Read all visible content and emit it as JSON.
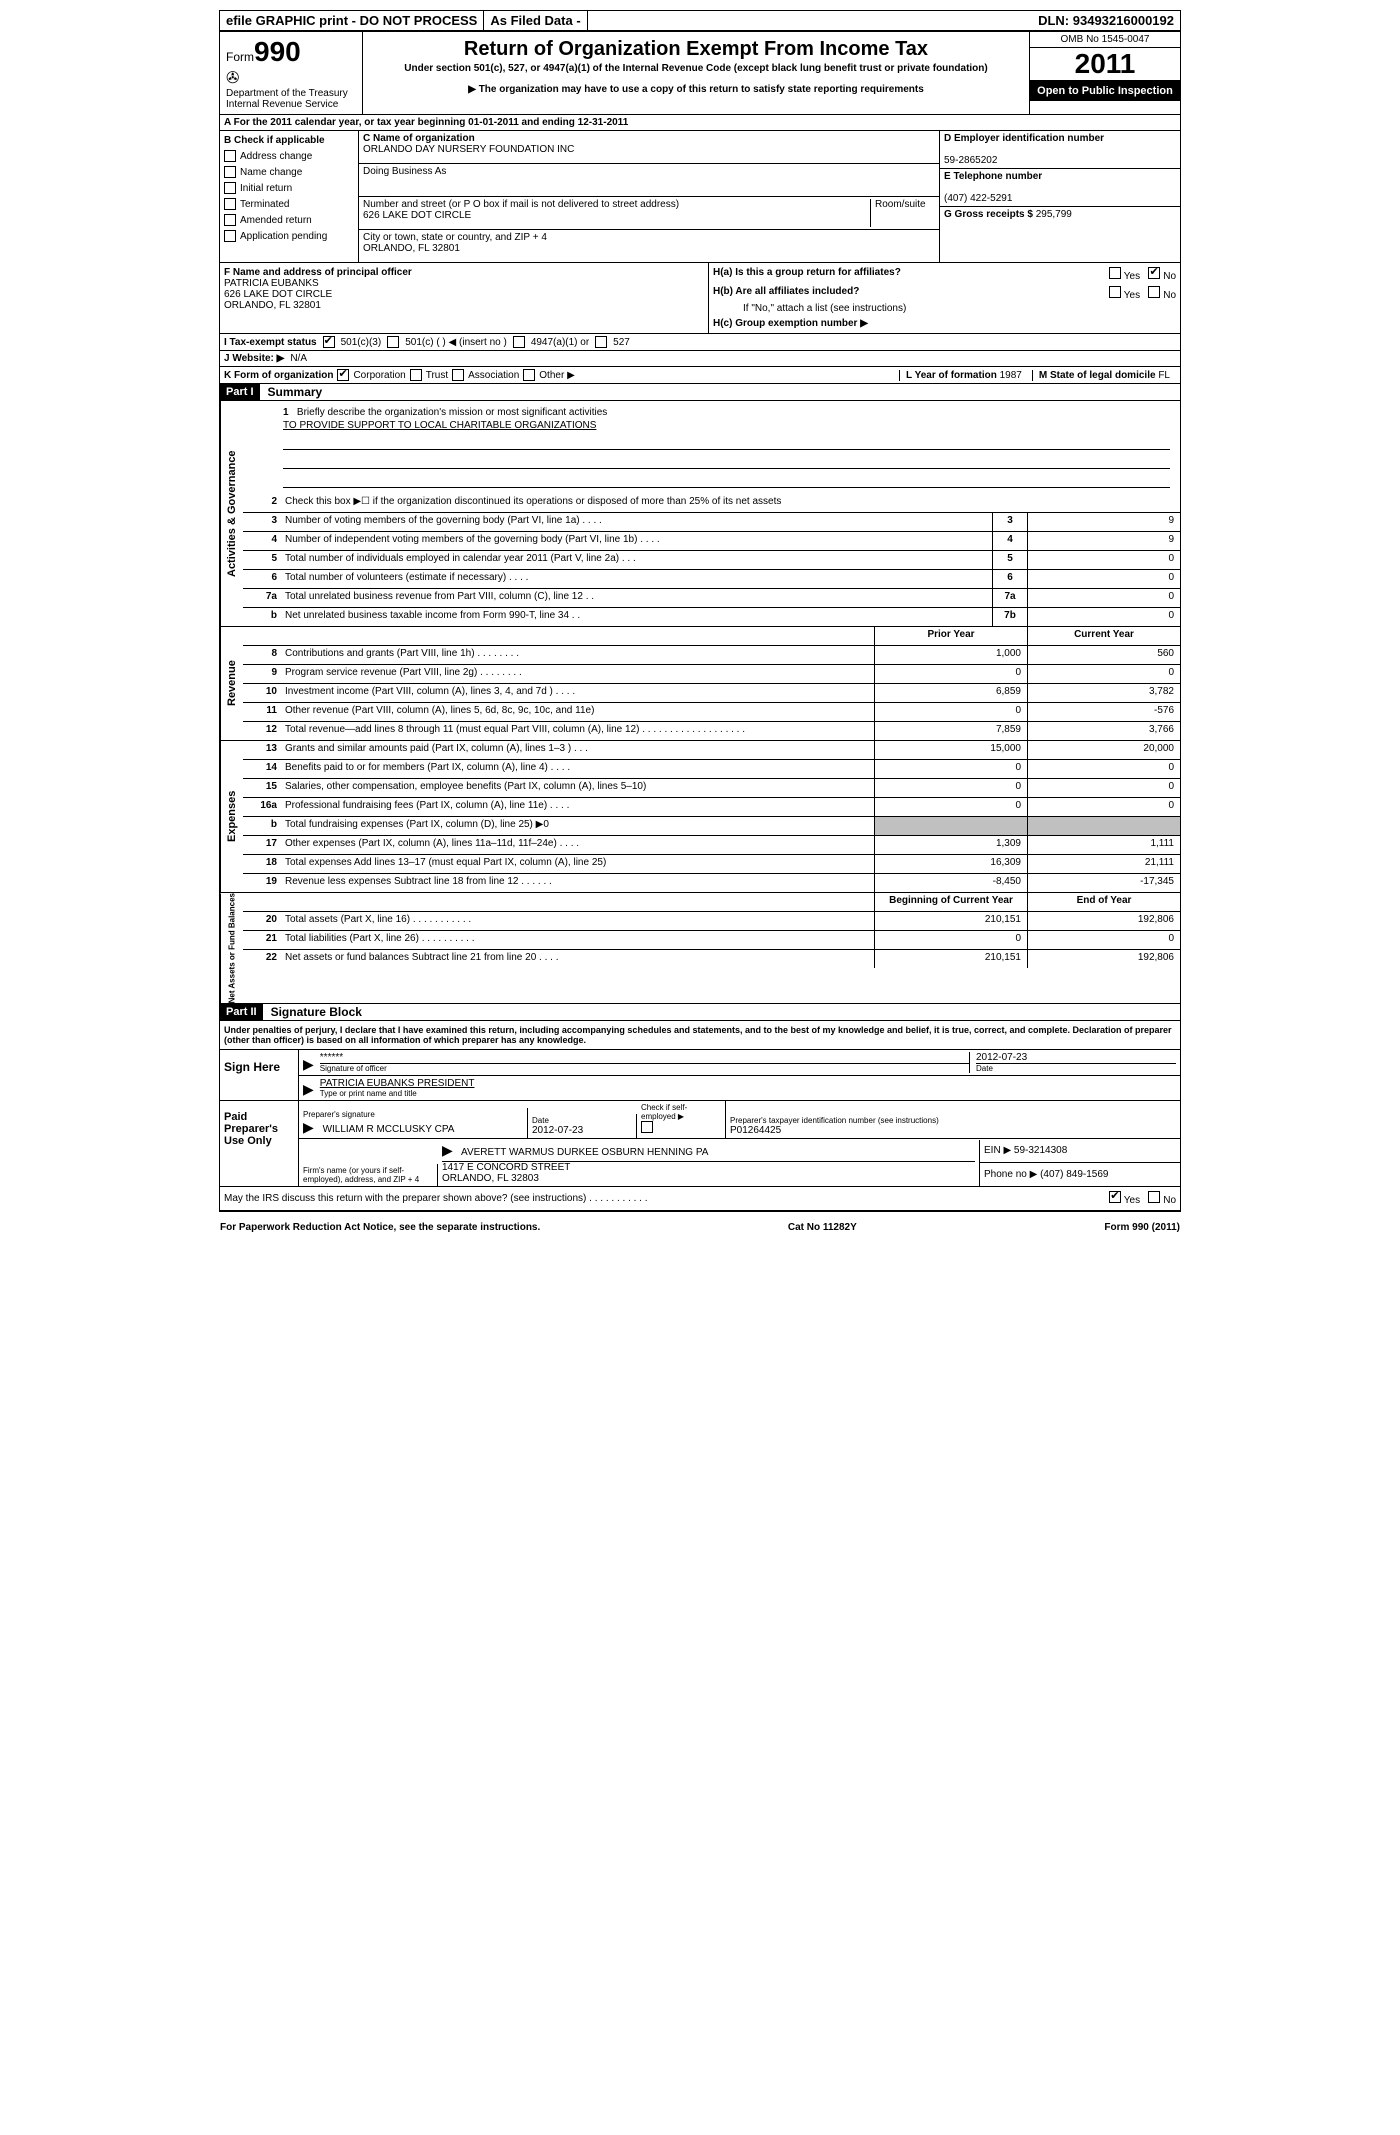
{
  "topbar": {
    "efile": "efile GRAPHIC print - DO NOT PROCESS",
    "asfiled": "As Filed Data -",
    "dln_label": "DLN:",
    "dln": "93493216000192"
  },
  "header": {
    "form_label": "Form",
    "form_num": "990",
    "dept": "Department of the Treasury",
    "irs": "Internal Revenue Service",
    "title": "Return of Organization Exempt From Income Tax",
    "sub1": "Under section 501(c), 527, or 4947(a)(1) of the Internal Revenue Code (except black lung benefit trust or private foundation)",
    "sub2": "▶ The organization may have to use a copy of this return to satisfy state reporting requirements",
    "omb": "OMB No 1545-0047",
    "year": "2011",
    "open": "Open to Public Inspection"
  },
  "sectionA": "A  For the 2011 calendar year, or tax year beginning 01-01-2011     and ending 12-31-2011",
  "colB": {
    "heading": "B Check if applicable",
    "items": [
      "Address change",
      "Name change",
      "Initial return",
      "Terminated",
      "Amended return",
      "Application pending"
    ]
  },
  "colC": {
    "name_label": "C Name of organization",
    "name": "ORLANDO DAY NURSERY FOUNDATION INC",
    "dba_label": "Doing Business As",
    "street_label": "Number and street (or P O  box if mail is not delivered to street address)",
    "room_label": "Room/suite",
    "street": "626 LAKE DOT CIRCLE",
    "city_label": "City or town, state or country, and ZIP + 4",
    "city": "ORLANDO, FL  32801"
  },
  "colD": {
    "d_label": "D Employer identification number",
    "ein": "59-2865202",
    "e_label": "E Telephone number",
    "phone": "(407) 422-5291",
    "g_label": "G Gross receipts $",
    "gross": "295,799"
  },
  "officer": {
    "f_label": "F  Name and address of principal officer",
    "name": "PATRICIA EUBANKS",
    "street": "626 LAKE DOT CIRCLE",
    "city": "ORLANDO, FL  32801"
  },
  "h": {
    "ha": "H(a)  Is this a group return for affiliates?",
    "hb": "H(b)  Are all affiliates included?",
    "hb_note": "If \"No,\" attach a list  (see instructions)",
    "hc": "H(c)   Group exemption number ▶"
  },
  "lineI": {
    "label": "I   Tax-exempt status",
    "opts": [
      "501(c)(3)",
      "501(c) (   ) ◀ (insert no )",
      "4947(a)(1) or",
      "527"
    ]
  },
  "lineJ": {
    "label": "J   Website: ▶",
    "val": "N/A"
  },
  "lineK": {
    "label": "K Form of organization",
    "opts": [
      "Corporation",
      "Trust",
      "Association",
      "Other ▶"
    ],
    "l_label": "L Year of formation",
    "l_val": "1987",
    "m_label": "M State of legal domicile",
    "m_val": "FL"
  },
  "part1": {
    "label": "Part I",
    "title": "Summary"
  },
  "mission": {
    "num": "1",
    "prompt": "Briefly describe the organization's mission or most significant activities",
    "text": "TO PROVIDE SUPPORT TO LOCAL CHARITABLE ORGANIZATIONS"
  },
  "governance_lines": [
    {
      "num": "2",
      "desc": "Check this box ▶☐ if the organization discontinued its operations or disposed of more than 25% of its net assets",
      "box": "",
      "val": ""
    },
    {
      "num": "3",
      "desc": "Number of voting members of the governing body (Part VI, line 1a) . . . .",
      "box": "3",
      "val": "9"
    },
    {
      "num": "4",
      "desc": "Number of independent voting members of the governing body (Part VI, line 1b) . . . .",
      "box": "4",
      "val": "9"
    },
    {
      "num": "5",
      "desc": "Total number of individuals employed in calendar year 2011 (Part V, line 2a) . . .",
      "box": "5",
      "val": "0"
    },
    {
      "num": "6",
      "desc": "Total number of volunteers (estimate if necessary) . . . .",
      "box": "6",
      "val": "0"
    },
    {
      "num": "7a",
      "desc": "Total unrelated business revenue from Part VIII, column (C), line 12 . .",
      "box": "7a",
      "val": "0"
    },
    {
      "num": "b",
      "desc": "Net unrelated business taxable income from Form 990-T, line 34 . .",
      "box": "7b",
      "val": "0"
    }
  ],
  "two_col_header": {
    "prior": "Prior Year",
    "current": "Current Year"
  },
  "revenue_lines": [
    {
      "num": "8",
      "desc": "Contributions and grants (Part VIII, line 1h) . . . . . . . .",
      "prior": "1,000",
      "current": "560"
    },
    {
      "num": "9",
      "desc": "Program service revenue (Part VIII, line 2g) . . . . . . . .",
      "prior": "0",
      "current": "0"
    },
    {
      "num": "10",
      "desc": "Investment income (Part VIII, column (A), lines 3, 4, and 7d ) . . . .",
      "prior": "6,859",
      "current": "3,782"
    },
    {
      "num": "11",
      "desc": "Other revenue (Part VIII, column (A), lines 5, 6d, 8c, 9c, 10c, and 11e)",
      "prior": "0",
      "current": "-576"
    },
    {
      "num": "12",
      "desc": "Total revenue—add lines 8 through 11 (must equal Part VIII, column (A), line 12) . . . . . . . . . . . . . . . . . . .",
      "prior": "7,859",
      "current": "3,766"
    }
  ],
  "expense_lines": [
    {
      "num": "13",
      "desc": "Grants and similar amounts paid (Part IX, column (A), lines 1–3 ) . . .",
      "prior": "15,000",
      "current": "20,000"
    },
    {
      "num": "14",
      "desc": "Benefits paid to or for members (Part IX, column (A), line 4) . . . .",
      "prior": "0",
      "current": "0"
    },
    {
      "num": "15",
      "desc": "Salaries, other compensation, employee benefits (Part IX, column (A), lines 5–10)",
      "prior": "0",
      "current": "0"
    },
    {
      "num": "16a",
      "desc": "Professional fundraising fees (Part IX, column (A), line 11e) . . . .",
      "prior": "0",
      "current": "0"
    },
    {
      "num": "b",
      "desc": "Total fundraising expenses (Part IX, column (D), line 25) ▶0",
      "prior": "",
      "current": "",
      "grey": true
    },
    {
      "num": "17",
      "desc": "Other expenses (Part IX, column (A), lines 11a–11d, 11f–24e) . . . .",
      "prior": "1,309",
      "current": "1,111"
    },
    {
      "num": "18",
      "desc": "Total expenses  Add lines 13–17 (must equal Part IX, column (A), line 25)",
      "prior": "16,309",
      "current": "21,111"
    },
    {
      "num": "19",
      "desc": "Revenue less expenses  Subtract line 18 from line 12 . . . . . .",
      "prior": "-8,450",
      "current": "-17,345"
    }
  ],
  "balance_header": {
    "begin": "Beginning of Current Year",
    "end": "End of Year"
  },
  "balance_lines": [
    {
      "num": "20",
      "desc": "Total assets (Part X, line 16) . . . . . . . . . . .",
      "prior": "210,151",
      "current": "192,806"
    },
    {
      "num": "21",
      "desc": "Total liabilities (Part X, line 26) . . . . . . . . . .",
      "prior": "0",
      "current": "0"
    },
    {
      "num": "22",
      "desc": "Net assets or fund balances  Subtract line 21 from line 20 . . . .",
      "prior": "210,151",
      "current": "192,806"
    }
  ],
  "sidebars": {
    "gov": "Activities & Governance",
    "rev": "Revenue",
    "exp": "Expenses",
    "bal": "Net Assets or Fund Balances"
  },
  "part2": {
    "label": "Part II",
    "title": "Signature Block"
  },
  "penalties": "Under penalties of perjury, I declare that I have examined this return, including accompanying schedules and statements, and to the best of my knowledge and belief, it is true, correct, and complete. Declaration of preparer (other than officer) is based on all information of which preparer has any knowledge.",
  "sign": {
    "label": "Sign Here",
    "sig_stars": "******",
    "sig_caption": "Signature of officer",
    "date": "2012-07-23",
    "date_caption": "Date",
    "name": "PATRICIA EUBANKS PRESIDENT",
    "name_caption": "Type or print name and title"
  },
  "preparer": {
    "label": "Paid Preparer's Use Only",
    "sig_label": "Preparer's signature",
    "name": "WILLIAM R MCCLUSKY CPA",
    "date_label": "Date",
    "date": "2012-07-23",
    "self_label": "Check if self-employed ▶",
    "ptin_label": "Preparer's taxpayer identification number (see instructions)",
    "ptin": "P01264425",
    "firm_label": "Firm's name (or yours if self-employed), address, and ZIP + 4",
    "firm_name": "AVERETT WARMUS DURKEE OSBURN HENNING PA",
    "firm_street": "1417 E CONCORD STREET",
    "firm_city": "ORLANDO, FL  32803",
    "ein_label": "EIN ▶",
    "ein": "59-3214308",
    "phone_label": "Phone no  ▶",
    "phone": "(407) 849-1569"
  },
  "discuss": "May the IRS discuss this return with the preparer shown above? (see instructions) . . . . . . . . . . .",
  "footer": {
    "left": "For Paperwork Reduction Act Notice, see the separate instructions.",
    "mid": "Cat No  11282Y",
    "right": "Form 990 (2011)"
  }
}
